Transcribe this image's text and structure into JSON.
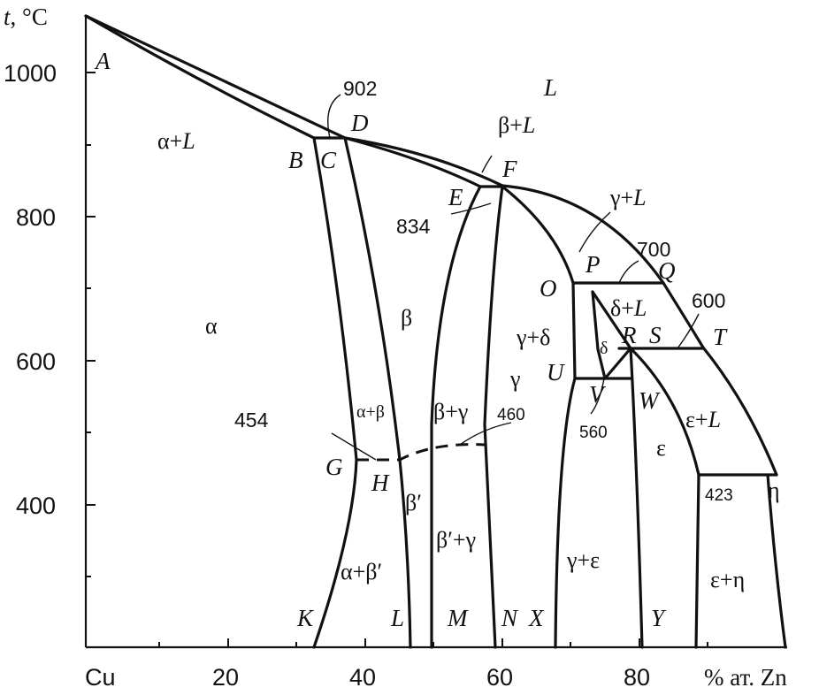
{
  "axes": {
    "y_title_var": "t",
    "y_title_unit": ", °C",
    "x_start": "Cu",
    "x_title": "% ат. Zn",
    "y_ticks": [
      "1000",
      "800",
      "600",
      "400"
    ],
    "x_ticks": [
      "20",
      "40",
      "60",
      "80"
    ]
  },
  "points": {
    "A": "A",
    "B": "B",
    "C": "C",
    "D": "D",
    "E": "E",
    "F": "F",
    "G": "G",
    "H": "H",
    "K": "K",
    "L": "L",
    "M": "M",
    "N": "N",
    "O": "O",
    "P": "P",
    "Q": "Q",
    "R": "R",
    "S": "S",
    "T": "T",
    "U": "U",
    "V": "V",
    "W": "W",
    "X": "X",
    "Y": "Y"
  },
  "phases": {
    "L": "L",
    "alpha_L_a": "α+",
    "alpha_L_b": "L",
    "beta_L_a": "β+",
    "beta_L_b": "L",
    "gamma_L_a": "γ+",
    "gamma_L_b": "L",
    "delta_L_a": "δ+",
    "delta_L_b": "L",
    "eps_L_a": "ε+",
    "eps_L_b": "L",
    "alpha": "α",
    "beta": "β",
    "gamma": "γ",
    "delta": "δ",
    "eps": "ε",
    "eta": "η",
    "gamma_delta": "γ+δ",
    "alpha_beta": "α+β",
    "beta_gamma": "β+γ",
    "beta_prime": "β′",
    "alpha_beta_prime": "α+β′",
    "beta_prime_gamma": "β′+γ",
    "gamma_eps": "γ+ε",
    "eps_eta": "ε+η"
  },
  "temperatures": {
    "t902": "902",
    "t834": "834",
    "t700": "700",
    "t600": "600",
    "t454": "454",
    "t460": "460",
    "t560": "560",
    "t423": "423"
  }
}
